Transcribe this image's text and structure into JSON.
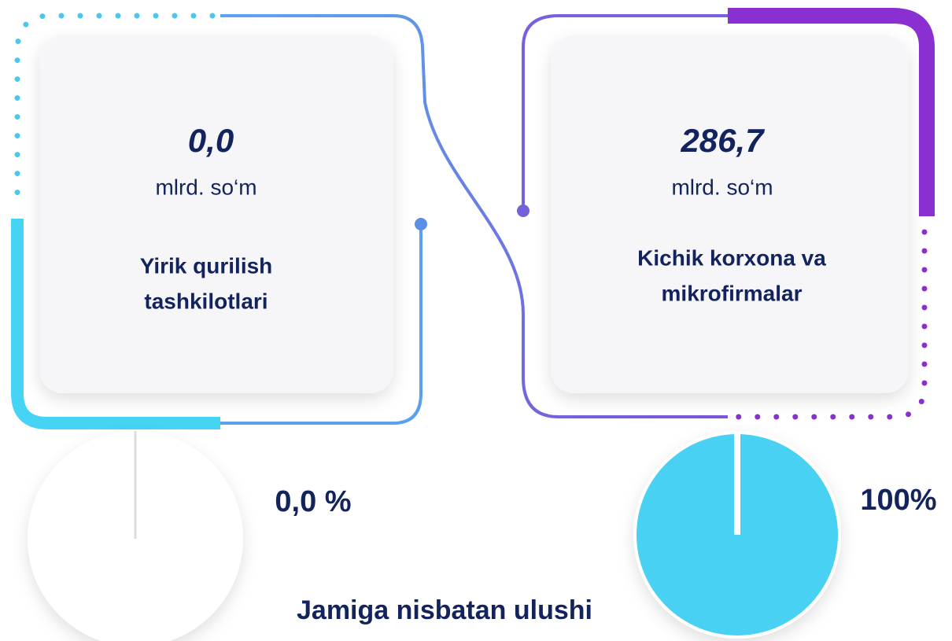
{
  "cards": [
    {
      "value": "0,0",
      "unit": "mlrd. so‘m",
      "label_lines": [
        "Yirik qurilish",
        "tashkilotlari"
      ]
    },
    {
      "value": "286,7",
      "unit": "mlrd. so‘m",
      "label_lines": [
        "Kichik korxona va",
        "mikrofirmalar"
      ]
    }
  ],
  "pies": [
    {
      "value": 0,
      "label": "0,0 %",
      "color": "#48d1f2"
    },
    {
      "value": 100,
      "label": "100%",
      "color": "#48d1f2"
    }
  ],
  "footer": "Jamiga nisbatan ulushi"
}
